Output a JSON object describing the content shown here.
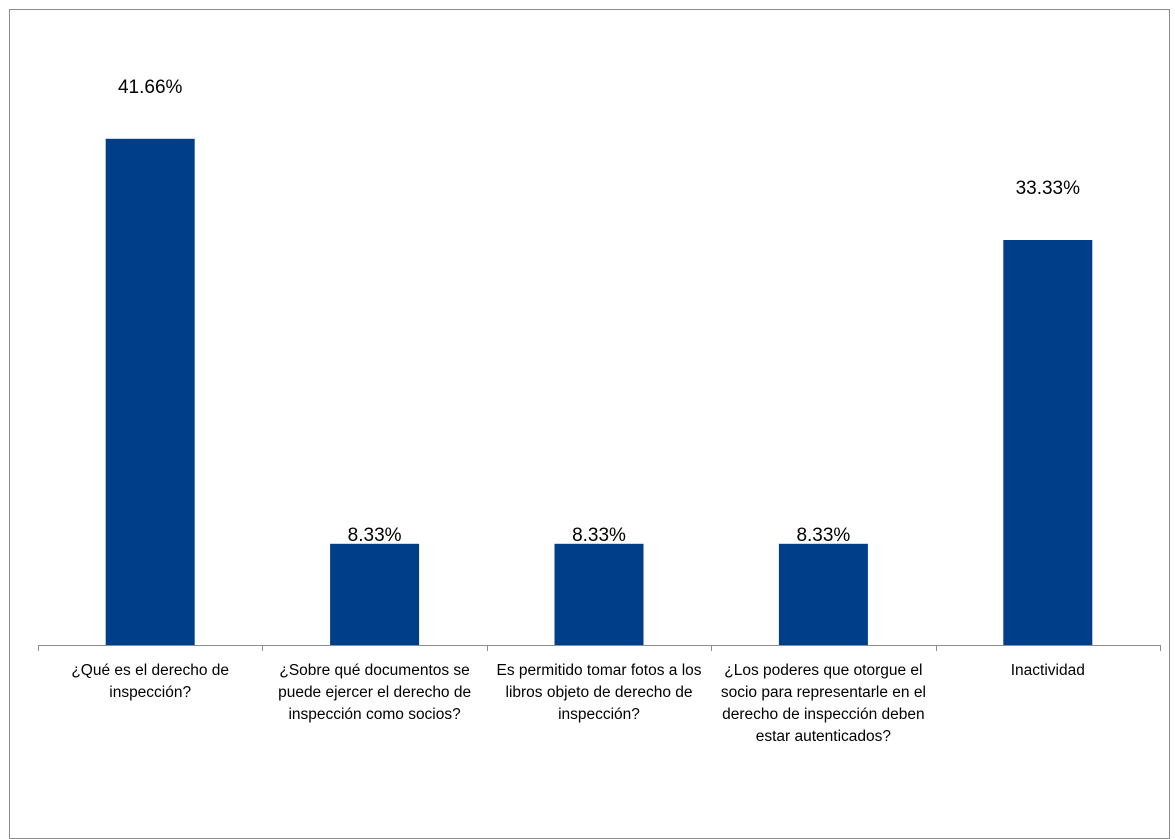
{
  "chart_data": {
    "type": "bar",
    "categories": [
      "¿Qué es el derecho de inspección?",
      "¿Sobre qué  documentos se puede ejercer el derecho de inspección como socios?",
      "Es permitido tomar fotos a los libros objeto de derecho de inspección?",
      "¿Los poderes que otorgue el socio para representarle en el derecho de inspección deben estar autenticados?",
      "Inactividad"
    ],
    "values": [
      41.66,
      8.33,
      8.33,
      8.33,
      33.33
    ],
    "data_labels": [
      "41.66%",
      "8.33%",
      "8.33%",
      "8.33%",
      "33.33%"
    ],
    "title": "",
    "xlabel": "",
    "ylabel": "",
    "ylim": [
      0,
      45
    ],
    "grid": false,
    "legend": "none",
    "bar_color": "#003e8a",
    "axis_color": "#8c8c8c"
  }
}
